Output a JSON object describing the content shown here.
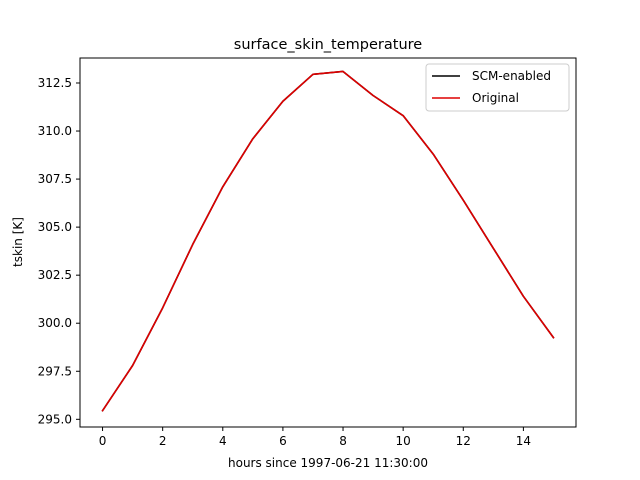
{
  "chart_data": {
    "type": "line",
    "title": "surface_skin_temperature",
    "xlabel": "hours since 1997-06-21 11:30:00",
    "ylabel": "tskin [K]",
    "xlim": [
      -0.75,
      15.75
    ],
    "ylim": [
      294.6,
      313.8
    ],
    "xticks": [
      0,
      2,
      4,
      6,
      8,
      10,
      12,
      14
    ],
    "yticks": [
      295.0,
      297.5,
      300.0,
      302.5,
      305.0,
      307.5,
      310.0,
      312.5
    ],
    "ytick_labels": [
      "295.0",
      "297.5",
      "300.0",
      "302.5",
      "305.0",
      "307.5",
      "310.0",
      "312.5"
    ],
    "grid": false,
    "legend_position": "upper right",
    "x": [
      0,
      1,
      2,
      3,
      4,
      5,
      6,
      7,
      8,
      9,
      10,
      11,
      12,
      13,
      14,
      15
    ],
    "series": [
      {
        "name": "SCM-enabled",
        "color": "#000000",
        "values": [
          295.45,
          297.8,
          300.8,
          304.1,
          307.1,
          309.6,
          311.55,
          312.95,
          313.1,
          311.85,
          310.8,
          308.8,
          306.4,
          303.9,
          301.4,
          299.25
        ]
      },
      {
        "name": "Original",
        "color": "#dd0000",
        "values": [
          295.45,
          297.8,
          300.8,
          304.1,
          307.1,
          309.6,
          311.55,
          312.95,
          313.1,
          311.85,
          310.8,
          308.8,
          306.4,
          303.9,
          301.4,
          299.25
        ]
      }
    ]
  }
}
